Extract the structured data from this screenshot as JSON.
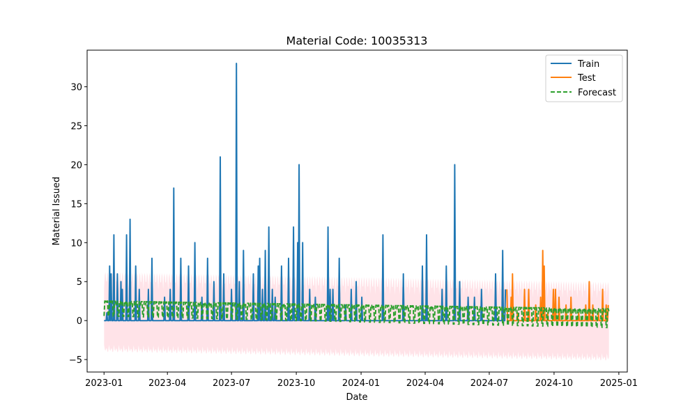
{
  "chart_data": {
    "type": "line",
    "title": "Material Code: 10035313",
    "xlabel": "Date",
    "ylabel": "Material Issued",
    "xlim": [
      "2022-12-08",
      "2025-01-13"
    ],
    "ylim": [
      -6.6,
      34.7
    ],
    "x_ticks": [
      "2023-01",
      "2023-04",
      "2023-07",
      "2023-10",
      "2024-01",
      "2024-04",
      "2024-07",
      "2024-10",
      "2025-01"
    ],
    "y_ticks": [
      -5,
      0,
      5,
      10,
      15,
      20,
      25,
      30
    ],
    "grid": false,
    "legend_position": "top-right",
    "series": [
      {
        "name": "Train",
        "color": "#1f77b4",
        "style": "solid",
        "points": [
          [
            "2023-01-01",
            0
          ],
          [
            "2023-01-05",
            1
          ],
          [
            "2023-01-09",
            7
          ],
          [
            "2023-01-11",
            6
          ],
          [
            "2023-01-15",
            11
          ],
          [
            "2023-01-20",
            6
          ],
          [
            "2023-01-25",
            5
          ],
          [
            "2023-01-27",
            4
          ],
          [
            "2023-02-02",
            11
          ],
          [
            "2023-02-07",
            13
          ],
          [
            "2023-02-15",
            7
          ],
          [
            "2023-02-20",
            4
          ],
          [
            "2023-03-05",
            4
          ],
          [
            "2023-03-10",
            8
          ],
          [
            "2023-03-28",
            3
          ],
          [
            "2023-04-05",
            4
          ],
          [
            "2023-04-10",
            17
          ],
          [
            "2023-04-20",
            8
          ],
          [
            "2023-05-01",
            7
          ],
          [
            "2023-05-10",
            10
          ],
          [
            "2023-05-20",
            3
          ],
          [
            "2023-05-28",
            8
          ],
          [
            "2023-06-06",
            5
          ],
          [
            "2023-06-15",
            21
          ],
          [
            "2023-06-20",
            6
          ],
          [
            "2023-07-01",
            4
          ],
          [
            "2023-07-08",
            33
          ],
          [
            "2023-07-12",
            5
          ],
          [
            "2023-07-18",
            9
          ],
          [
            "2023-08-01",
            6
          ],
          [
            "2023-08-08",
            7
          ],
          [
            "2023-08-10",
            8
          ],
          [
            "2023-08-14",
            4
          ],
          [
            "2023-08-18",
            9
          ],
          [
            "2023-08-23",
            12
          ],
          [
            "2023-08-28",
            4
          ],
          [
            "2023-09-01",
            3
          ],
          [
            "2023-09-10",
            7
          ],
          [
            "2023-09-20",
            8
          ],
          [
            "2023-09-27",
            12
          ],
          [
            "2023-10-03",
            10
          ],
          [
            "2023-10-05",
            20
          ],
          [
            "2023-10-10",
            10
          ],
          [
            "2023-10-20",
            4
          ],
          [
            "2023-10-28",
            3
          ],
          [
            "2023-11-15",
            12
          ],
          [
            "2023-11-18",
            4
          ],
          [
            "2023-11-22",
            4
          ],
          [
            "2023-12-01",
            8
          ],
          [
            "2023-12-10",
            2
          ],
          [
            "2023-12-18",
            4
          ],
          [
            "2023-12-25",
            5
          ],
          [
            "2024-01-02",
            3
          ],
          [
            "2024-02-01",
            11
          ],
          [
            "2024-03-01",
            6
          ],
          [
            "2024-03-28",
            7
          ],
          [
            "2024-04-03",
            11
          ],
          [
            "2024-04-25",
            4
          ],
          [
            "2024-05-01",
            7
          ],
          [
            "2024-05-13",
            20
          ],
          [
            "2024-05-20",
            5
          ],
          [
            "2024-06-01",
            3
          ],
          [
            "2024-06-10",
            3
          ],
          [
            "2024-06-20",
            4
          ],
          [
            "2024-07-10",
            6
          ],
          [
            "2024-07-20",
            9
          ],
          [
            "2024-07-24",
            4
          ]
        ]
      },
      {
        "name": "Test",
        "color": "#ff7f0e",
        "style": "solid",
        "points": [
          [
            "2024-07-26",
            4
          ],
          [
            "2024-08-01",
            3
          ],
          [
            "2024-08-03",
            6
          ],
          [
            "2024-08-10",
            1
          ],
          [
            "2024-08-20",
            4
          ],
          [
            "2024-08-26",
            4
          ],
          [
            "2024-09-05",
            2
          ],
          [
            "2024-09-12",
            3
          ],
          [
            "2024-09-15",
            9
          ],
          [
            "2024-09-17",
            7
          ],
          [
            "2024-09-22",
            1
          ],
          [
            "2024-09-30",
            4
          ],
          [
            "2024-10-03",
            4
          ],
          [
            "2024-10-08",
            3
          ],
          [
            "2024-10-18",
            2
          ],
          [
            "2024-10-25",
            3
          ],
          [
            "2024-11-05",
            1
          ],
          [
            "2024-11-15",
            2
          ],
          [
            "2024-11-20",
            5
          ],
          [
            "2024-11-25",
            2
          ],
          [
            "2024-12-03",
            1
          ],
          [
            "2024-12-09",
            4
          ],
          [
            "2024-12-14",
            2
          ],
          [
            "2024-12-17",
            2
          ]
        ]
      },
      {
        "name": "Forecast",
        "color": "#2ca02c",
        "style": "dashed",
        "start": "2023-01-01",
        "end": "2024-12-18",
        "shape": "weekly oscillation",
        "upper_start": 2.5,
        "upper_end": 1.5,
        "lower_start": 0.6,
        "lower_end": -0.9
      }
    ],
    "confidence_band": {
      "color": "#ffc0cb",
      "upper_start": 6.3,
      "upper_end": 5.0,
      "lower_start": -3.8,
      "lower_end": -4.9
    }
  }
}
